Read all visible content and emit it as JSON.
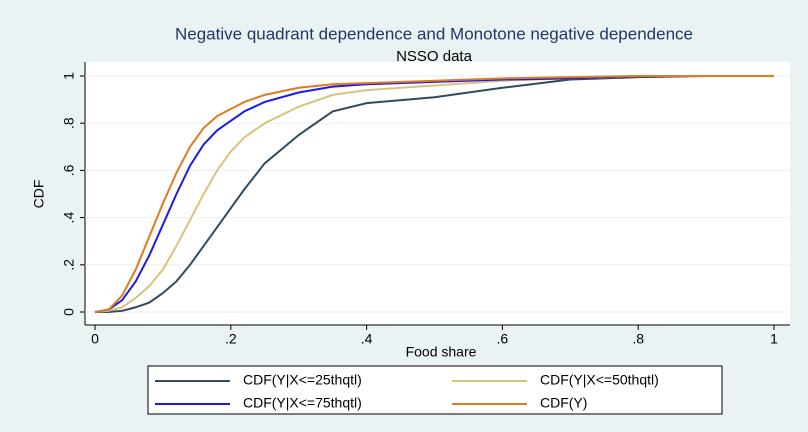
{
  "chart_data": {
    "type": "line",
    "title": "Negative quadrant dependence and Monotone negative dependence",
    "subtitle": "NSSO data",
    "x_label": "Food share",
    "y_label": "CDF",
    "x": [
      0,
      0.02,
      0.04,
      0.06,
      0.08,
      0.1,
      0.12,
      0.14,
      0.16,
      0.18,
      0.2,
      0.22,
      0.25,
      0.3,
      0.35,
      0.4,
      0.5,
      0.6,
      0.7,
      0.8,
      0.9,
      1
    ],
    "series": [
      {
        "name": "CDF(Y|X<=25thqtl)",
        "color": "#2f4b5f",
        "values": [
          0,
          0,
          0.005,
          0.02,
          0.04,
          0.08,
          0.13,
          0.2,
          0.28,
          0.36,
          0.44,
          0.52,
          0.63,
          0.75,
          0.85,
          0.885,
          0.91,
          0.95,
          0.985,
          0.995,
          1,
          1
        ]
      },
      {
        "name": "CDF(Y|X<=50thqtl)",
        "color": "#d9c27c",
        "values": [
          0,
          0.005,
          0.02,
          0.06,
          0.11,
          0.18,
          0.28,
          0.39,
          0.5,
          0.6,
          0.68,
          0.74,
          0.8,
          0.87,
          0.92,
          0.94,
          0.96,
          0.98,
          0.99,
          1,
          1,
          1
        ]
      },
      {
        "name": "CDF(Y|X<=75thqtl)",
        "color": "#1a1aee",
        "values": [
          0,
          0.01,
          0.05,
          0.13,
          0.24,
          0.37,
          0.5,
          0.62,
          0.71,
          0.77,
          0.81,
          0.85,
          0.89,
          0.93,
          0.955,
          0.965,
          0.975,
          0.985,
          0.99,
          1,
          1,
          1
        ]
      },
      {
        "name": "CDF(Y)",
        "color": "#e07b20",
        "values": [
          0,
          0.01,
          0.07,
          0.18,
          0.32,
          0.46,
          0.59,
          0.7,
          0.78,
          0.83,
          0.86,
          0.89,
          0.92,
          0.95,
          0.965,
          0.97,
          0.98,
          0.99,
          0.995,
          1,
          1,
          1
        ]
      }
    ],
    "xlim": [
      0,
      1
    ],
    "ylim": [
      0,
      1
    ],
    "xticks": [
      0,
      {
        "value": 0.2,
        "label": ".2"
      },
      {
        "value": 0.4,
        "label": ".4"
      },
      {
        "value": 0.6,
        "label": ".6"
      },
      {
        "value": 0.8,
        "label": ".8"
      },
      1
    ],
    "yticks": [
      0,
      {
        "value": 0.2,
        "label": ".2"
      },
      {
        "value": 0.4,
        "label": ".4"
      },
      {
        "value": 0.6,
        "label": ".6"
      },
      {
        "value": 0.8,
        "label": ".8"
      },
      1
    ],
    "grid": true
  }
}
